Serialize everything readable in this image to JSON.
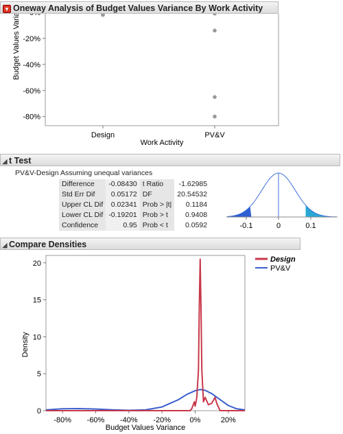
{
  "oneway": {
    "title": "Oneway Analysis of Budget Values Variance By Work Activity",
    "y_label": "Budget Values Variance",
    "x_label": "Work Activity",
    "y_ticks": [
      "0%",
      "-20%",
      "-40%",
      "-60%",
      "-80%"
    ],
    "categories": [
      "Design",
      "PV&V"
    ]
  },
  "ttest": {
    "title": "t Test",
    "comparison": "PV&V-Design Assuming unequal variances",
    "rows": [
      {
        "label1": "Difference",
        "value1": "-0.08430",
        "label2": "t Ratio",
        "value2": "-1.62985"
      },
      {
        "label1": "Std Err Dif",
        "value1": "0.05172",
        "label2": "DF",
        "value2": "20.54532"
      },
      {
        "label1": "Upper CL Dif",
        "value1": "0.02341",
        "label2": "Prob > |t|",
        "value2": "0.1184"
      },
      {
        "label1": "Lower CL Dif",
        "value1": "-0.19201",
        "label2": "Prob > t",
        "value2": "0.9408"
      },
      {
        "label1": "Confidence",
        "value1": "0.95",
        "label2": "Prob < t",
        "value2": "0.0592"
      }
    ],
    "dist_ticks": [
      "-0.1",
      "0",
      "0.1"
    ]
  },
  "densities": {
    "title": "Compare Densities",
    "y_label": "Density",
    "x_label": "Budget Values Variance",
    "y_ticks": [
      "0",
      "5",
      "10",
      "15",
      "20"
    ],
    "x_ticks": [
      "-80%",
      "-60%",
      "-40%",
      "-20%",
      "0%",
      "20%"
    ],
    "legend": [
      {
        "name": "Design",
        "color": "#c8374a"
      },
      {
        "name": "PV&V",
        "color": "#3a5fcd"
      }
    ]
  },
  "chart_data": [
    {
      "type": "scatter",
      "title": "Oneway Analysis of Budget Values Variance By Work Activity",
      "xlabel": "Work Activity",
      "ylabel": "Budget Values Variance",
      "categories": [
        "Design",
        "PV&V"
      ],
      "ylim": [
        -0.87,
        0.01
      ],
      "series": [
        {
          "name": "Design",
          "values": [
            0.0,
            -0.01,
            -0.02,
            -0.02
          ]
        },
        {
          "name": "PV&V",
          "values": [
            0.0,
            -0.01,
            -0.14,
            -0.65,
            -0.8
          ]
        }
      ]
    },
    {
      "type": "line",
      "xlabel": "Budget Values Variance",
      "ylabel": "Density",
      "xlim": [
        -0.9,
        0.3
      ],
      "ylim": [
        0,
        21
      ],
      "series": [
        {
          "name": "Design",
          "color": "#c8374a",
          "x": [
            -0.9,
            -0.03,
            -0.02,
            -0.005,
            0.0,
            0.01,
            0.02,
            0.025,
            0.03,
            0.035,
            0.04,
            0.05,
            0.06,
            0.08,
            0.1,
            0.12,
            0.13,
            0.15,
            0.3
          ],
          "y": [
            0,
            0,
            0.3,
            1.2,
            0.6,
            1.8,
            5.5,
            14,
            20.5,
            14,
            5.5,
            1.2,
            1.8,
            0.8,
            1.0,
            1.8,
            1.0,
            0,
            0
          ]
        },
        {
          "name": "PV&V",
          "color": "#3a5fcd",
          "x": [
            -0.9,
            -0.8,
            -0.7,
            -0.6,
            -0.5,
            -0.4,
            -0.3,
            -0.2,
            -0.1,
            -0.05,
            0.0,
            0.03,
            0.06,
            0.1,
            0.15,
            0.2,
            0.25,
            0.3
          ],
          "y": [
            0.1,
            0.25,
            0.28,
            0.22,
            0.12,
            0.05,
            0.1,
            0.5,
            1.5,
            2.2,
            2.7,
            2.85,
            2.75,
            2.3,
            1.5,
            0.7,
            0.25,
            0.1
          ]
        }
      ]
    }
  ]
}
